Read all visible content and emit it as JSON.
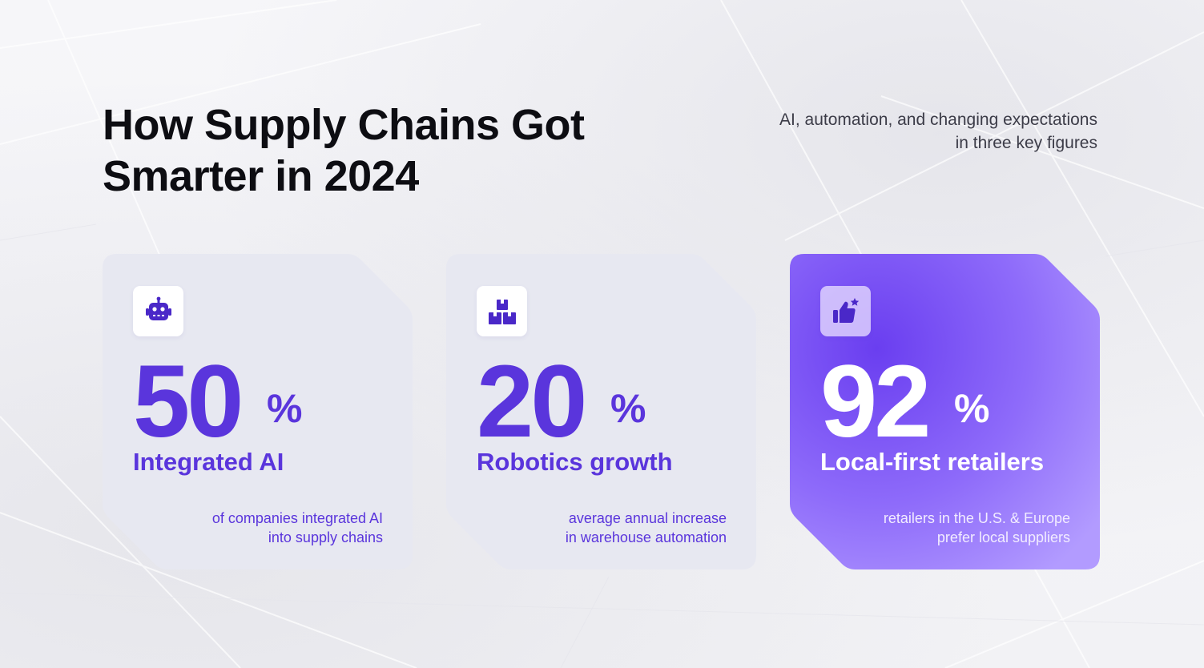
{
  "header": {
    "title_line1": "How Supply Chains Got",
    "title_line2": "Smarter in 2024",
    "subtitle_line1": "AI, automation, and changing expectations",
    "subtitle_line2": "in three key figures"
  },
  "colors": {
    "accent": "#5a35dc",
    "card_bg": "#e7e8f1",
    "highlight_card_start": "#6a3ef0",
    "highlight_card_end": "#a88cff",
    "title": "#0d0d12"
  },
  "cards": [
    {
      "icon": "robot-icon",
      "number": "50",
      "percent": "%",
      "label": "Integrated AI",
      "desc_line1": "of companies integrated AI",
      "desc_line2": "into supply chains"
    },
    {
      "icon": "boxes-icon",
      "number": "20",
      "percent": "%",
      "label": "Robotics growth",
      "desc_line1": "average annual increase",
      "desc_line2": "in warehouse automation"
    },
    {
      "icon": "thumbs-up-star-icon",
      "number": "92",
      "percent": "%",
      "label": "Local-first retailers",
      "desc_line1": "retailers in the U.S. & Europe",
      "desc_line2": "prefer local suppliers"
    }
  ]
}
